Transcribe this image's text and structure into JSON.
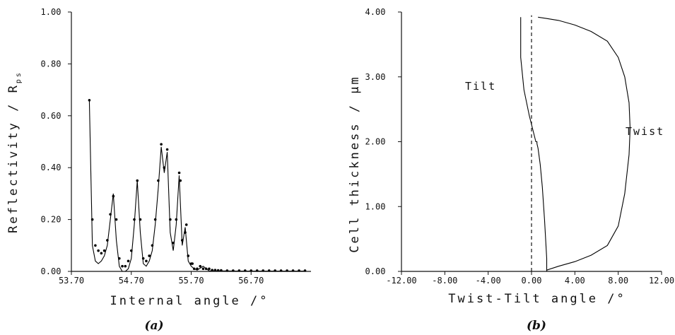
{
  "chart_data": [
    {
      "type": "line",
      "panel_label": "(a)",
      "xlabel": "Internal angle /°",
      "ylabel_main": "Reflectivity / R",
      "ylabel_sub": "ps",
      "xlim": [
        53.7,
        57.7
      ],
      "ylim": [
        0.0,
        1.0
      ],
      "x_ticks": [
        "53.70",
        "54.70",
        "55.70",
        "56.70"
      ],
      "y_ticks": [
        "0.00",
        "0.20",
        "0.40",
        "0.60",
        "0.80",
        "1.00"
      ],
      "grid": false,
      "series": [
        {
          "style": "points",
          "x": [
            54.0,
            54.05,
            54.1,
            54.15,
            54.2,
            54.25,
            54.3,
            54.35,
            54.4,
            54.45,
            54.5,
            54.55,
            54.6,
            54.65,
            54.7,
            54.75,
            54.8,
            54.85,
            54.9,
            54.95,
            55.0,
            55.05,
            55.1,
            55.15,
            55.2,
            55.25,
            55.3,
            55.35,
            55.4,
            55.45,
            55.5,
            55.52,
            55.55,
            55.6,
            55.62,
            55.65,
            55.7,
            55.72,
            55.75,
            55.8,
            55.85,
            55.9,
            55.95,
            56.0,
            56.05,
            56.1,
            56.15,
            56.2,
            56.3,
            56.4,
            56.5,
            56.6,
            56.7,
            56.8,
            56.9,
            57.0,
            57.1,
            57.2,
            57.3,
            57.4,
            57.5,
            57.6
          ],
          "y": [
            0.66,
            0.2,
            0.1,
            0.08,
            0.07,
            0.08,
            0.12,
            0.22,
            0.29,
            0.2,
            0.05,
            0.02,
            0.02,
            0.04,
            0.08,
            0.2,
            0.35,
            0.2,
            0.05,
            0.04,
            0.06,
            0.1,
            0.2,
            0.35,
            0.49,
            0.4,
            0.47,
            0.2,
            0.11,
            0.2,
            0.38,
            0.35,
            0.12,
            0.15,
            0.18,
            0.06,
            0.03,
            0.03,
            0.01,
            0.01,
            0.02,
            0.01,
            0.01,
            0.01,
            0.005,
            0.005,
            0.004,
            0.004,
            0.003,
            0.003,
            0.003,
            0.003,
            0.003,
            0.003,
            0.003,
            0.003,
            0.003,
            0.003,
            0.003,
            0.003,
            0.003,
            0.003
          ]
        },
        {
          "style": "solid",
          "x": [
            54.0,
            54.05,
            54.1,
            54.15,
            54.2,
            54.25,
            54.3,
            54.35,
            54.4,
            54.45,
            54.5,
            54.55,
            54.6,
            54.65,
            54.7,
            54.75,
            54.8,
            54.85,
            54.9,
            54.95,
            55.0,
            55.05,
            55.1,
            55.15,
            55.2,
            55.25,
            55.3,
            55.35,
            55.4,
            55.45,
            55.5,
            55.55,
            55.6,
            55.65,
            55.7,
            55.75,
            55.8,
            55.9,
            56.0,
            56.2,
            56.5,
            57.0,
            57.6
          ],
          "y": [
            0.66,
            0.1,
            0.04,
            0.03,
            0.04,
            0.06,
            0.1,
            0.2,
            0.3,
            0.12,
            0.02,
            0.0,
            0.0,
            0.01,
            0.05,
            0.18,
            0.35,
            0.15,
            0.03,
            0.02,
            0.04,
            0.08,
            0.18,
            0.32,
            0.48,
            0.38,
            0.46,
            0.15,
            0.08,
            0.18,
            0.37,
            0.1,
            0.17,
            0.04,
            0.02,
            0.01,
            0.005,
            0.02,
            0.002,
            0.002,
            0.001,
            0.001,
            0.001
          ]
        }
      ]
    },
    {
      "type": "line",
      "panel_label": "(b)",
      "xlabel": "Twist-Tilt angle /°",
      "ylabel": "Cell thickness / μm",
      "xlim": [
        -12.0,
        12.0
      ],
      "ylim": [
        0.0,
        4.0
      ],
      "x_ticks": [
        "-12.00",
        "-8.00",
        "-4.00",
        "0.00",
        "4.00",
        "8.00",
        "12.00"
      ],
      "y_ticks": [
        "0.00",
        "1.00",
        "2.00",
        "3.00",
        "4.00"
      ],
      "grid": false,
      "annotations": [
        "Tilt",
        "Twist"
      ],
      "series": [
        {
          "style": "solid",
          "x": [
            1.4,
            1.4,
            2.5,
            4.0,
            5.5,
            7.0,
            8.0,
            8.6,
            9.0,
            9.1,
            9.0,
            8.6,
            8.0,
            7.0,
            5.5,
            4.0,
            2.5,
            1.4,
            0.6
          ],
          "y": [
            0.0,
            0.02,
            0.08,
            0.15,
            0.25,
            0.4,
            0.7,
            1.2,
            1.8,
            2.2,
            2.6,
            3.0,
            3.3,
            3.55,
            3.7,
            3.8,
            3.87,
            3.9,
            3.92
          ]
        },
        {
          "style": "solid",
          "x": [
            1.4,
            1.4,
            1.2,
            1.0,
            0.8,
            0.6,
            0.5,
            0.5,
            0.4,
            -0.2,
            -0.7,
            -1.0,
            -1.0
          ],
          "y": [
            0.0,
            0.2,
            0.8,
            1.3,
            1.65,
            1.9,
            1.97,
            2.0,
            2.0,
            2.4,
            2.8,
            3.3,
            3.92
          ]
        },
        {
          "style": "dashed",
          "x": [
            0.0,
            0.0,
            0.0,
            0.0
          ],
          "y": [
            0.0,
            1.5,
            3.0,
            3.95
          ]
        }
      ]
    }
  ]
}
